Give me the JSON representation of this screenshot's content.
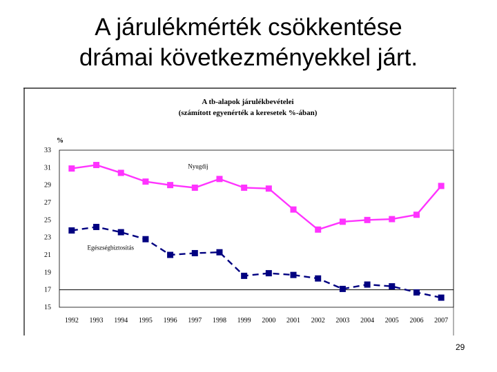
{
  "slide": {
    "title_line1": "A járulékmérték csökkentése",
    "title_line2": "drámai következményekkel járt.",
    "page_number": "29"
  },
  "chart_data": {
    "type": "line",
    "title": "A tb-alapok járulékbevételei",
    "subtitle": "(számított egyenérték a keresetek %-ában)",
    "ylabel": "%",
    "xlabel": "",
    "categories": [
      "1992",
      "1993",
      "1994",
      "1995",
      "1996",
      "1997",
      "1998",
      "1999",
      "2000",
      "2001",
      "2002",
      "2003",
      "2004",
      "2005",
      "2006",
      "2007"
    ],
    "ylim": [
      15,
      33
    ],
    "yticks": [
      "33",
      "31",
      "29",
      "27",
      "25",
      "23",
      "21",
      "19",
      "17",
      "15"
    ],
    "reference_line": 17,
    "grid": false,
    "series": [
      {
        "name": "Nyugdíj",
        "color": "#FF33FF",
        "line_style": "solid",
        "values": [
          30.9,
          31.3,
          30.4,
          29.4,
          29.0,
          28.7,
          29.7,
          28.7,
          28.6,
          26.2,
          23.9,
          24.8,
          25.0,
          25.1,
          25.6,
          28.9
        ]
      },
      {
        "name": "Egészségbiztosítás",
        "color": "#000080",
        "line_style": "dashed",
        "values": [
          23.8,
          24.2,
          23.6,
          22.8,
          21.0,
          21.2,
          21.3,
          18.6,
          18.9,
          18.7,
          18.3,
          17.1,
          17.6,
          17.4,
          16.7,
          16.1
        ]
      }
    ]
  }
}
